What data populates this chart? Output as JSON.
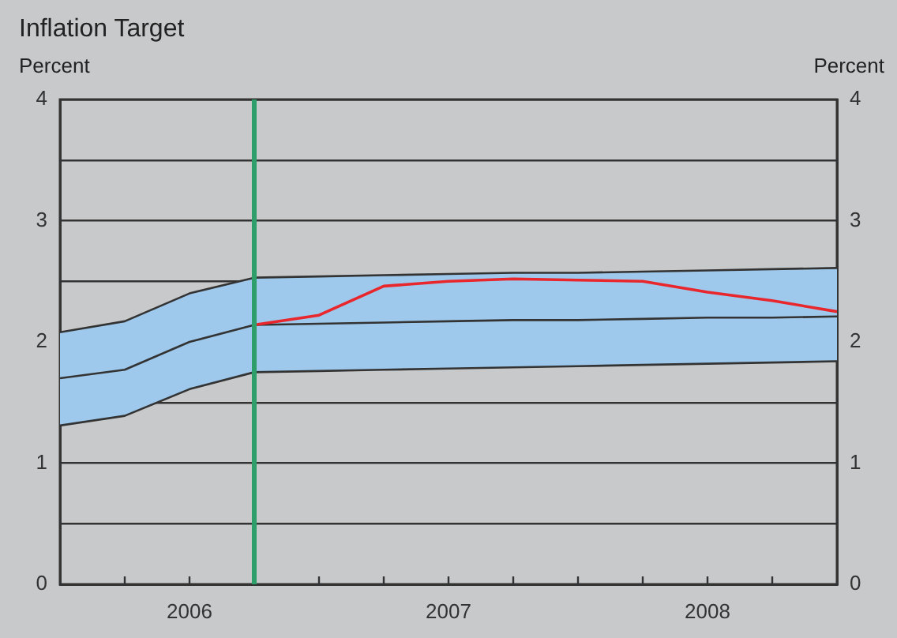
{
  "chart_data": {
    "type": "line",
    "title": "Inflation Target",
    "ylabel": "Percent",
    "y2label": "Percent",
    "x": [
      2006,
      2006.25,
      2006.5,
      2006.75,
      2007,
      2007.25,
      2007.5,
      2007.75,
      2008,
      2008.25,
      2008.5,
      2008.75,
      2009
    ],
    "series": [
      {
        "color": "#333333",
        "values": [
          1.7,
          1.77,
          2.0,
          2.14,
          2.15,
          2.16,
          2.17,
          2.18,
          2.18,
          2.19,
          2.2,
          2.2,
          2.21
        ],
        "lower": [
          1.31,
          1.39,
          1.61,
          1.75,
          1.76,
          1.77,
          1.78,
          1.79,
          1.8,
          1.81,
          1.82,
          1.83,
          1.84
        ],
        "upper": [
          2.08,
          2.17,
          2.4,
          2.53,
          2.54,
          2.55,
          2.56,
          2.57,
          2.57,
          2.58,
          2.59,
          2.6,
          2.61
        ]
      },
      {
        "color": "#333333",
        "values": [
          2.08,
          2.17,
          2.4,
          2.53,
          2.54,
          2.55,
          2.56,
          2.57,
          2.57,
          2.58,
          2.59,
          2.6,
          2.61
        ]
      },
      {
        "color": "#333333",
        "values": [
          1.31,
          1.39,
          1.61,
          1.75,
          1.76,
          1.77,
          1.78,
          1.79,
          1.8,
          1.81,
          1.82,
          1.83,
          1.84
        ]
      },
      {
        "color": "#e8262b",
        "x": [
          2006.75,
          2007,
          2007.25,
          2007.5,
          2007.75,
          2008,
          2008.25,
          2008.5,
          2008.75,
          2009
        ],
        "values": [
          2.14,
          2.22,
          2.46,
          2.5,
          2.52,
          2.51,
          2.5,
          2.41,
          2.34,
          2.25
        ]
      }
    ],
    "xlim": [
      2006,
      2009
    ],
    "xticks": [
      {
        "value": 2006.25,
        "label": null
      },
      {
        "value": 2006.5,
        "label": "2006"
      },
      {
        "value": 2006.75,
        "label": null
      },
      {
        "value": 2007,
        "label": null
      },
      {
        "value": 2007.25,
        "label": null
      },
      {
        "value": 2007.5,
        "label": "2007"
      },
      {
        "value": 2007.75,
        "label": null
      },
      {
        "value": 2008,
        "label": null
      },
      {
        "value": 2008.25,
        "label": null
      },
      {
        "value": 2008.5,
        "label": "2008"
      },
      {
        "value": 2008.75,
        "label": null
      }
    ],
    "ylim": [
      0,
      4
    ],
    "yticks": [
      0,
      {
        "value": 0.5,
        "label": null
      },
      1,
      {
        "value": 1.5,
        "label": null
      },
      2,
      {
        "value": 2.5,
        "label": null
      },
      3,
      {
        "value": 3.5,
        "label": null
      },
      4
    ],
    "y2lim": [
      0,
      4
    ],
    "y2ticks": [
      0,
      1,
      2,
      3,
      4
    ],
    "grid": "y",
    "legend": false,
    "marker": "none",
    "line_style": "solid",
    "ref_lines": [
      {
        "axis": "x",
        "value": 2006.75,
        "color": "#2e9e6b"
      }
    ]
  }
}
